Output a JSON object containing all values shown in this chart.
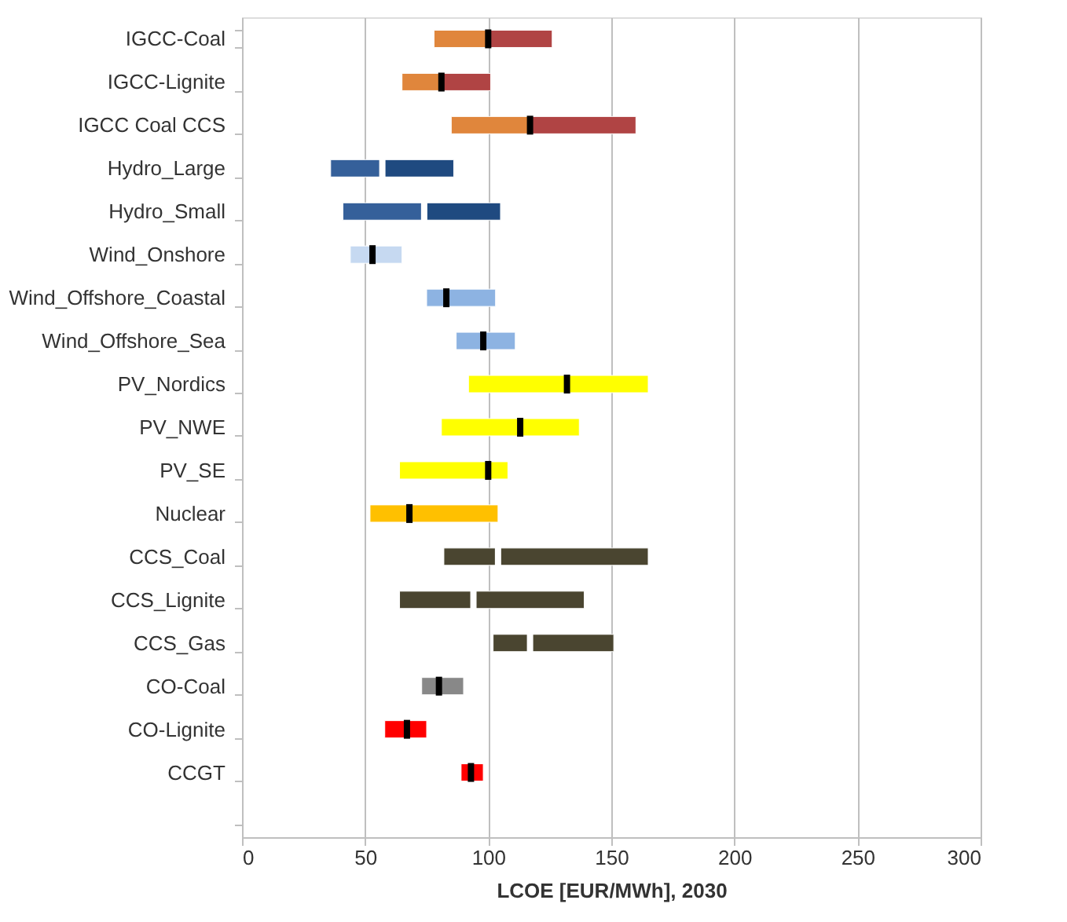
{
  "chart_data": {
    "type": "bar",
    "orientation": "horizontal",
    "xlabel": "LCOE [EUR/MWh], 2030",
    "categories": [
      "IGCC-Coal",
      "IGCC-Lignite",
      "IGCC Coal CCS",
      "Hydro_Large",
      "Hydro_Small",
      "Wind_Onshore",
      "Wind_Offshore_Coastal",
      "Wind_Offshore_Sea",
      "PV_Nordics",
      "PV_NWE",
      "PV_SE",
      "Nuclear",
      "CCS_Coal",
      "CCS_Lignite",
      "CCS_Gas",
      "CO-Coal",
      "CO-Lignite",
      "CCGT",
      null
    ],
    "series": [
      {
        "type": "bar",
        "base": [
          78,
          65,
          85,
          36,
          41,
          44,
          75,
          87,
          92,
          81,
          64,
          52,
          82,
          64,
          102,
          73,
          58,
          89,
          null
        ],
        "values": [
          22,
          16,
          32,
          21,
          33,
          9,
          8,
          11,
          40,
          32,
          36,
          16,
          22,
          30,
          15,
          7,
          9,
          4,
          null
        ],
        "colors": [
          "#e0863c",
          "#e0863c",
          "#e0863c",
          "#35609a",
          "#35609a",
          "#c6d9f1",
          "#8db3e2",
          "#8db3e2",
          "#ffff00",
          "#ffff00",
          "#ffff00",
          "#ffc000",
          "#4a4530",
          "#4a4530",
          "#4a4530",
          "#888888",
          "#ff0000",
          "#ff0000",
          null
        ]
      },
      {
        "type": "bar",
        "base": [
          100,
          81,
          117,
          57,
          74,
          53,
          83,
          98,
          132,
          113,
          100,
          68,
          104,
          94,
          117,
          80,
          67,
          93,
          null
        ],
        "values": [
          26,
          20,
          43,
          29,
          31,
          12,
          20,
          13,
          33,
          24,
          8,
          36,
          61,
          45,
          34,
          10,
          8,
          5,
          null
        ],
        "colors": [
          "#b04444",
          "#b04444",
          "#b04444",
          "#1f4a80",
          "#1f4a80",
          "#c6d9f1",
          "#8db3e2",
          "#8db3e2",
          "#ffff00",
          "#ffff00",
          "#ffff00",
          "#ffc000",
          "#4a4530",
          "#4a4530",
          "#4a4530",
          "#888888",
          "#ff0000",
          "#ff0000",
          null
        ]
      },
      {
        "type": "scatter",
        "values": [
          100,
          81,
          117,
          57,
          74,
          53,
          83,
          98,
          132,
          113,
          100,
          68,
          104,
          94,
          117,
          80,
          67,
          93,
          null
        ],
        "colors": [
          "#000000",
          "#000000",
          "#000000",
          "#ffffff",
          "#ffffff",
          "#000000",
          "#000000",
          "#000000",
          "#000000",
          "#000000",
          "#000000",
          "#000000",
          "#ffffff",
          "#ffffff",
          "#ffffff",
          "#000000",
          "#000000",
          "#000000",
          null
        ]
      }
    ],
    "xlim": [
      0,
      300
    ],
    "xticks": [
      0,
      50,
      100,
      150,
      200,
      250,
      300
    ],
    "grid": "x"
  }
}
